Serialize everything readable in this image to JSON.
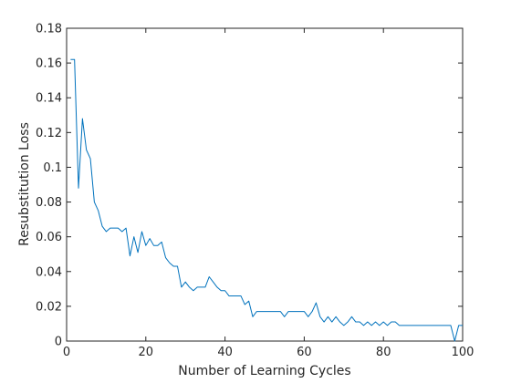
{
  "chart_data": {
    "type": "line",
    "title": "",
    "xlabel": "Number of Learning Cycles",
    "ylabel": "Resubstitution Loss",
    "xlim": [
      0,
      100
    ],
    "ylim": [
      0,
      0.18
    ],
    "xticks": [
      0,
      20,
      40,
      60,
      80,
      100
    ],
    "yticks": [
      0,
      0.02,
      0.04,
      0.06,
      0.08,
      0.1,
      0.12,
      0.14,
      0.16,
      0.18
    ],
    "xtick_labels": [
      "0",
      "20",
      "40",
      "60",
      "80",
      "100"
    ],
    "ytick_labels": [
      "0",
      "0.02",
      "0.04",
      "0.06",
      "0.08",
      "0.1",
      "0.12",
      "0.14",
      "0.16",
      "0.18"
    ],
    "grid": false,
    "legend": "none",
    "series": [
      {
        "color": "#0072BD",
        "x": [
          1,
          2,
          3,
          4,
          5,
          6,
          7,
          8,
          9,
          10,
          11,
          12,
          13,
          14,
          15,
          16,
          17,
          18,
          19,
          20,
          21,
          22,
          23,
          24,
          25,
          26,
          27,
          28,
          29,
          30,
          31,
          32,
          33,
          34,
          35,
          36,
          37,
          38,
          39,
          40,
          41,
          42,
          43,
          44,
          45,
          46,
          47,
          48,
          49,
          50,
          51,
          52,
          53,
          54,
          55,
          56,
          57,
          58,
          59,
          60,
          61,
          62,
          63,
          64,
          65,
          66,
          67,
          68,
          69,
          70,
          71,
          72,
          73,
          74,
          75,
          76,
          77,
          78,
          79,
          80,
          81,
          82,
          83,
          84,
          85,
          86,
          87,
          88,
          89,
          90,
          91,
          92,
          93,
          94,
          95,
          96,
          97,
          98,
          99,
          100
        ],
        "values": [
          0.162,
          0.162,
          0.088,
          0.128,
          0.11,
          0.105,
          0.08,
          0.075,
          0.066,
          0.063,
          0.065,
          0.065,
          0.065,
          0.063,
          0.065,
          0.049,
          0.06,
          0.051,
          0.063,
          0.055,
          0.059,
          0.055,
          0.055,
          0.057,
          0.048,
          0.045,
          0.043,
          0.043,
          0.031,
          0.034,
          0.031,
          0.029,
          0.031,
          0.031,
          0.031,
          0.037,
          0.034,
          0.031,
          0.029,
          0.029,
          0.026,
          0.026,
          0.026,
          0.026,
          0.021,
          0.023,
          0.014,
          0.017,
          0.017,
          0.017,
          0.017,
          0.017,
          0.017,
          0.017,
          0.014,
          0.017,
          0.017,
          0.017,
          0.017,
          0.017,
          0.014,
          0.017,
          0.022,
          0.014,
          0.011,
          0.014,
          0.011,
          0.014,
          0.011,
          0.009,
          0.011,
          0.014,
          0.011,
          0.011,
          0.009,
          0.011,
          0.009,
          0.011,
          0.009,
          0.011,
          0.009,
          0.011,
          0.011,
          0.009,
          0.009,
          0.009,
          0.009,
          0.009,
          0.009,
          0.009,
          0.009,
          0.009,
          0.009,
          0.009,
          0.009,
          0.009,
          0.009,
          0.0,
          0.009,
          0.009
        ]
      }
    ]
  }
}
